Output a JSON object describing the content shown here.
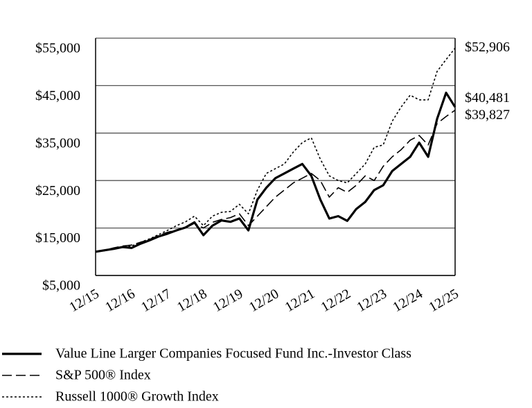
{
  "chart_data": {
    "type": "line",
    "categories": [
      "12/15",
      null,
      null,
      null,
      "12/16",
      null,
      null,
      null,
      "12/17",
      null,
      null,
      null,
      "12/18",
      null,
      null,
      null,
      "12/19",
      null,
      null,
      null,
      "12/20",
      null,
      null,
      null,
      "12/21",
      null,
      null,
      null,
      "12/22",
      null,
      null,
      null,
      "12/23",
      null,
      null,
      null,
      "12/24",
      null,
      null,
      null,
      "12/25"
    ],
    "ylim": [
      5000,
      55000
    ],
    "yticks": [
      {
        "value": 5000,
        "label": "$5,000"
      },
      {
        "value": 15000,
        "label": "$15,000"
      },
      {
        "value": 25000,
        "label": "$25,000"
      },
      {
        "value": 35000,
        "label": "$35,000"
      },
      {
        "value": 45000,
        "label": "$45,000"
      },
      {
        "value": 55000,
        "label": "$55,000"
      }
    ],
    "grid": true,
    "series": [
      {
        "name": "Value Line Larger Companies Focused Fund Inc.-Investor Class",
        "color": "#000000",
        "dash": "solid",
        "values": [
          10000,
          10300,
          10600,
          11000,
          10800,
          11700,
          12400,
          13200,
          13800,
          14500,
          15100,
          16200,
          13500,
          15500,
          16600,
          16300,
          17000,
          14500,
          21000,
          23500,
          25500,
          26500,
          27500,
          28500,
          26000,
          21000,
          17000,
          17500,
          16500,
          19000,
          20500,
          23000,
          24000,
          27000,
          28500,
          30000,
          33000,
          30000,
          38000,
          43500,
          40481
        ],
        "value_labels": [
          null,
          null,
          null,
          null,
          null,
          null,
          null,
          null,
          null,
          null,
          null,
          null,
          null,
          null,
          null,
          null,
          null,
          null,
          null,
          null,
          null,
          null,
          null,
          null,
          null,
          null,
          null,
          null,
          null,
          null,
          null,
          null,
          null,
          null,
          null,
          null,
          null,
          null,
          null,
          null,
          "$40,481"
        ]
      },
      {
        "name": "S&P 500® Index",
        "color": "#000000",
        "dash": "dashed",
        "values": [
          10000,
          10300,
          10800,
          11200,
          11400,
          12000,
          12600,
          13400,
          14100,
          14600,
          15000,
          16000,
          15000,
          16200,
          16800,
          17200,
          18000,
          15500,
          17500,
          19500,
          21500,
          23000,
          24500,
          25500,
          26500,
          25000,
          21500,
          23500,
          22500,
          24000,
          26000,
          25000,
          28000,
          30000,
          31500,
          33500,
          34500,
          32500,
          37000,
          38500,
          39827
        ],
        "value_labels": [
          null,
          null,
          null,
          null,
          null,
          null,
          null,
          null,
          null,
          null,
          null,
          null,
          null,
          null,
          null,
          null,
          null,
          null,
          null,
          null,
          null,
          null,
          null,
          null,
          null,
          null,
          null,
          null,
          null,
          null,
          null,
          null,
          null,
          null,
          null,
          null,
          null,
          null,
          null,
          null,
          "$39,827"
        ]
      },
      {
        "name": "Russell 1000® Growth Index",
        "color": "#000000",
        "dash": "dotted",
        "values": [
          10000,
          10200,
          10700,
          11000,
          11200,
          12000,
          12700,
          13600,
          14500,
          15500,
          16300,
          17500,
          15500,
          17500,
          18300,
          18500,
          20000,
          18000,
          23000,
          26500,
          27500,
          28500,
          31000,
          33000,
          34000,
          29500,
          26000,
          25000,
          24500,
          26500,
          28500,
          32000,
          32500,
          37500,
          40500,
          43000,
          42000,
          42000,
          48000,
          50500,
          52906
        ],
        "value_labels": [
          null,
          null,
          null,
          null,
          null,
          null,
          null,
          null,
          null,
          null,
          null,
          null,
          null,
          null,
          null,
          null,
          null,
          null,
          null,
          null,
          null,
          null,
          null,
          null,
          null,
          null,
          null,
          null,
          null,
          null,
          null,
          null,
          null,
          null,
          null,
          null,
          null,
          null,
          null,
          null,
          "$52,906"
        ]
      }
    ]
  }
}
